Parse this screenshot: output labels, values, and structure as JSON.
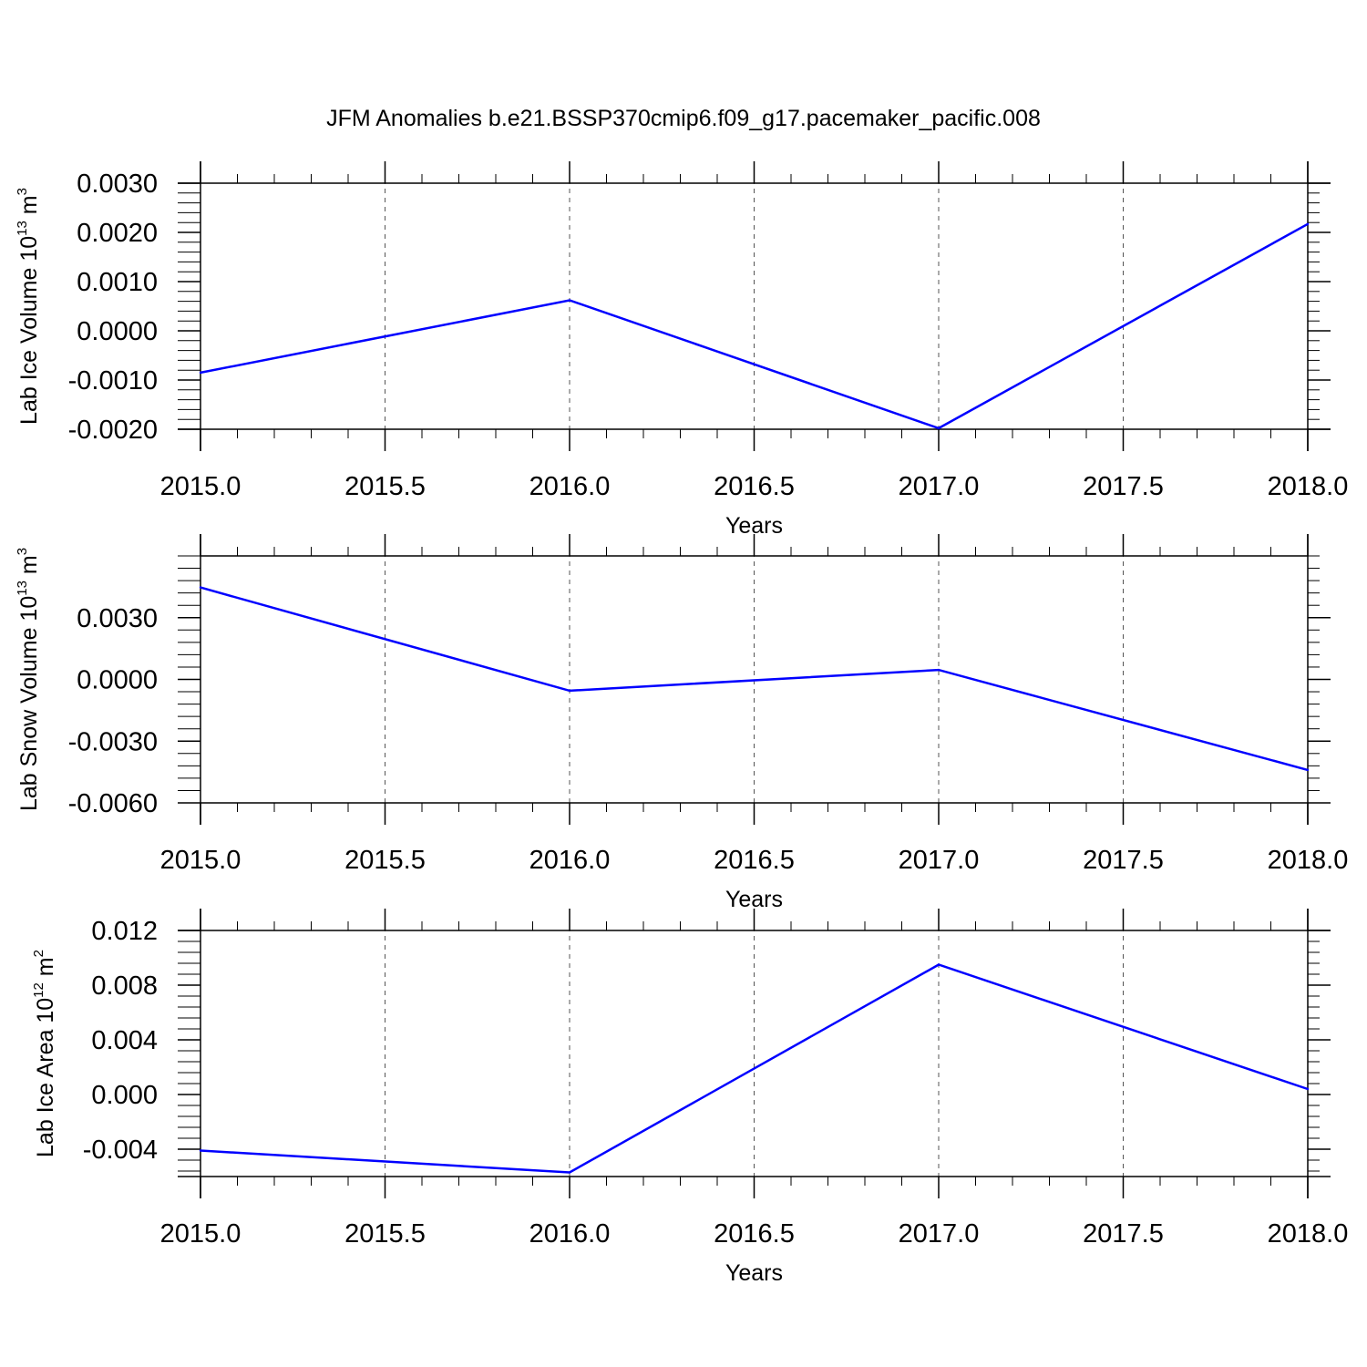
{
  "title": "JFM Anomalies b.e21.BSSP370cmip6.f09_g17.pacemaker_pacific.008",
  "colors": {
    "series": "#0000ff",
    "axis": "#000000",
    "grid": "#555555"
  },
  "chart_data": [
    {
      "type": "line",
      "ylabel": {
        "main": "Lab Ice Volume 10",
        "sup": "13",
        "unit": " m",
        "unit_sup": "3"
      },
      "xlabel": "Years",
      "xlim": [
        2015.0,
        2018.0
      ],
      "ylim": [
        -0.002,
        0.003
      ],
      "yticks": [
        "0.0030",
        "0.0020",
        "0.0010",
        "0.0000",
        "-0.0010",
        "-0.0020"
      ],
      "ytick_values": [
        0.003,
        0.002,
        0.001,
        0.0,
        -0.001,
        -0.002
      ],
      "xticks": [
        "2015.0",
        "2015.5",
        "2016.0",
        "2016.5",
        "2017.0",
        "2017.5",
        "2018.0"
      ],
      "xtick_values": [
        2015.0,
        2015.5,
        2016.0,
        2016.5,
        2017.0,
        2017.5,
        2018.0
      ],
      "grid": "dashed vertical",
      "x": [
        2015,
        2016,
        2017,
        2018
      ],
      "y": [
        -0.00085,
        0.00062,
        -0.00198,
        0.00217
      ]
    },
    {
      "type": "line",
      "ylabel": {
        "main": "Lab Snow Volume 10",
        "sup": "13",
        "unit": " m",
        "unit_sup": "3"
      },
      "xlabel": "Years",
      "xlim": [
        2015.0,
        2018.0
      ],
      "ylim": [
        -0.006,
        0.006
      ],
      "yticks": [
        "0.0030",
        "0.0000",
        "-0.0030",
        "-0.0060"
      ],
      "ytick_values": [
        0.003,
        0.0,
        -0.003,
        -0.006
      ],
      "xticks": [
        "2015.0",
        "2015.5",
        "2016.0",
        "2016.5",
        "2017.0",
        "2017.5",
        "2018.0"
      ],
      "xtick_values": [
        2015.0,
        2015.5,
        2016.0,
        2016.5,
        2017.0,
        2017.5,
        2018.0
      ],
      "grid": "dashed vertical",
      "x": [
        2015,
        2016,
        2017,
        2018
      ],
      "y": [
        0.00447,
        -0.00055,
        0.00046,
        -0.0044
      ]
    },
    {
      "type": "line",
      "ylabel": {
        "main": "Lab Ice Area 10",
        "sup": "12",
        "unit": " m",
        "unit_sup": "2"
      },
      "xlabel": "Years",
      "xlim": [
        2015.0,
        2018.0
      ],
      "ylim": [
        -0.006,
        0.012
      ],
      "yticks": [
        "0.012",
        "0.008",
        "0.004",
        "0.000",
        "-0.004"
      ],
      "ytick_values": [
        0.012,
        0.008,
        0.004,
        0.0,
        -0.004
      ],
      "xticks": [
        "2015.0",
        "2015.5",
        "2016.0",
        "2016.5",
        "2017.0",
        "2017.5",
        "2018.0"
      ],
      "xtick_values": [
        2015.0,
        2015.5,
        2016.0,
        2016.5,
        2017.0,
        2017.5,
        2018.0
      ],
      "grid": "dashed vertical",
      "x": [
        2015,
        2016,
        2017,
        2018
      ],
      "y": [
        -0.0041,
        -0.0057,
        0.0095,
        0.0004
      ]
    }
  ]
}
